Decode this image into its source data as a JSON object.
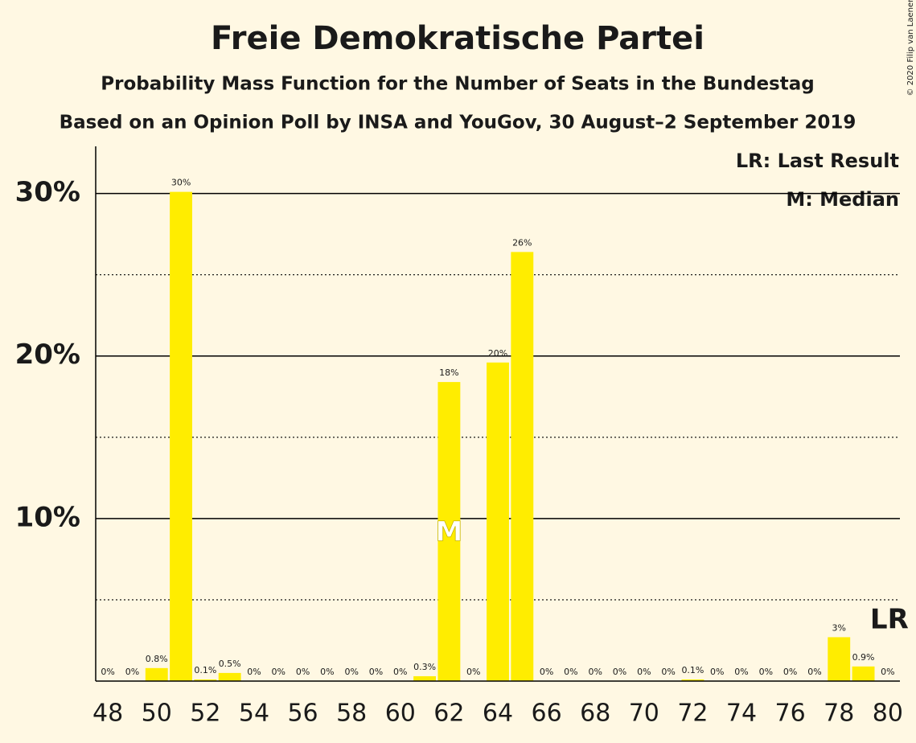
{
  "chart_data": {
    "type": "bar",
    "title": "Freie Demokratische Partei",
    "subtitle": "Probability Mass Function for the Number of Seats in the Bundestag",
    "source_line": "Based on an Opinion Poll by INSA and YouGov, 30 August–2 September 2019",
    "copyright": "© 2020 Filip van Laenen",
    "legend": [
      "LR: Last Result",
      "M: Median"
    ],
    "x": [
      48,
      49,
      50,
      51,
      52,
      53,
      54,
      55,
      56,
      57,
      58,
      59,
      60,
      61,
      62,
      63,
      64,
      65,
      66,
      67,
      68,
      69,
      70,
      71,
      72,
      73,
      74,
      75,
      76,
      77,
      78,
      79,
      80
    ],
    "values": [
      0,
      0,
      0.8,
      30.1,
      0.1,
      0.5,
      0,
      0,
      0,
      0,
      0,
      0,
      0,
      0.3,
      18.4,
      0,
      19.6,
      26.4,
      0,
      0,
      0,
      0,
      0,
      0,
      0.1,
      0,
      0,
      0,
      0,
      0,
      2.7,
      0.9,
      0
    ],
    "value_labels": [
      "0%",
      "0%",
      "0.8%",
      "30%",
      "0.1%",
      "0.5%",
      "0%",
      "0%",
      "0%",
      "0%",
      "0%",
      "0%",
      "0%",
      "0.3%",
      "18%",
      "0%",
      "20%",
      "26%",
      "0%",
      "0%",
      "0%",
      "0%",
      "0%",
      "0%",
      "0.1%",
      "0%",
      "0%",
      "0%",
      "0%",
      "0%",
      "3%",
      "0.9%",
      "0%"
    ],
    "color": "#ffed00",
    "xlim": [
      47.5,
      80.5
    ],
    "xticks": [
      48,
      50,
      52,
      54,
      56,
      58,
      60,
      62,
      64,
      66,
      68,
      70,
      72,
      74,
      76,
      78,
      80
    ],
    "ylim": [
      0,
      32.9
    ],
    "yticks": [
      {
        "value": 10,
        "label": "10%"
      },
      {
        "value": 20,
        "label": "20%"
      },
      {
        "value": 30,
        "label": "30%"
      }
    ],
    "minor_grid": [
      5,
      15,
      25
    ],
    "grid": true,
    "median": 62,
    "median_label": "M",
    "last_result": 80,
    "last_result_label": "LR"
  }
}
